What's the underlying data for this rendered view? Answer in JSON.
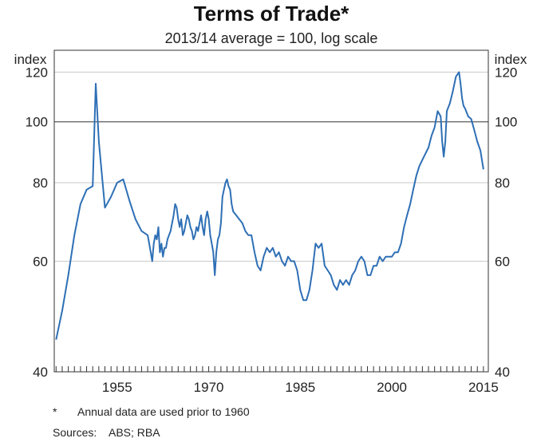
{
  "chart_data": {
    "type": "line",
    "title": "Terms of Trade*",
    "subtitle": "2013/14 average = 100, log scale",
    "ylabel_left": "index",
    "ylabel_right": "index",
    "y_scale": "log",
    "ylim": [
      40,
      130
    ],
    "xlim": [
      1944.7,
      2015.8
    ],
    "y_ticks": [
      40,
      60,
      80,
      100,
      120
    ],
    "x_ticks": [
      1955,
      1970,
      1985,
      2000,
      2015
    ],
    "reference_line": 100,
    "grid": true,
    "color": "#2e6fb5",
    "series": [
      {
        "x": [
          1945,
          1946,
          1947,
          1948,
          1949,
          1950,
          1951,
          1951.5,
          1952,
          1953,
          1954,
          1955,
          1956,
          1957,
          1958,
          1959,
          1960.0,
          1960.25,
          1960.5,
          1960.75,
          1961.0,
          1961.25,
          1961.5,
          1961.75,
          1962.0,
          1962.25,
          1962.5,
          1962.75,
          1963.0,
          1963.25,
          1963.5,
          1963.75,
          1964.0,
          1964.25,
          1964.5,
          1964.75,
          1965.0,
          1965.25,
          1965.5,
          1965.75,
          1966.0,
          1966.25,
          1966.5,
          1966.75,
          1967.0,
          1967.25,
          1967.5,
          1967.75,
          1968.0,
          1968.25,
          1968.5,
          1968.75,
          1969.0,
          1969.25,
          1969.5,
          1969.75,
          1970.0,
          1970.25,
          1970.5,
          1970.75,
          1971.0,
          1971.25,
          1971.5,
          1971.75,
          1972.0,
          1972.25,
          1972.5,
          1972.75,
          1973.0,
          1973.25,
          1973.5,
          1973.75,
          1974.0,
          1974.5,
          1975.0,
          1975.5,
          1976.0,
          1976.5,
          1977.0,
          1977.5,
          1978.0,
          1978.5,
          1979.0,
          1979.5,
          1980.0,
          1980.5,
          1981.0,
          1981.5,
          1982.0,
          1982.5,
          1983.0,
          1983.5,
          1984.0,
          1984.5,
          1985.0,
          1985.5,
          1986.0,
          1986.5,
          1987.0,
          1987.5,
          1988.0,
          1988.5,
          1989.0,
          1989.5,
          1990.0,
          1990.5,
          1991.0,
          1991.5,
          1992.0,
          1992.5,
          1993.0,
          1993.5,
          1994.0,
          1994.5,
          1995.0,
          1995.5,
          1996.0,
          1996.5,
          1997.0,
          1997.5,
          1998.0,
          1998.5,
          1999.0,
          1999.5,
          2000.0,
          2000.5,
          2001.0,
          2001.5,
          2002.0,
          2002.5,
          2003.0,
          2003.5,
          2004.0,
          2004.5,
          2005.0,
          2005.5,
          2006.0,
          2006.5,
          2007.0,
          2007.5,
          2008.0,
          2008.25,
          2008.5,
          2008.75,
          2009.0,
          2009.5,
          2010.0,
          2010.5,
          2011.0,
          2011.25,
          2011.5,
          2011.75,
          2012.0,
          2012.5,
          2013.0,
          2013.5,
          2014.0,
          2014.5,
          2015.0
        ],
        "y": [
          45,
          50,
          57,
          66,
          74,
          78,
          79,
          115,
          93,
          73,
          76,
          80,
          81,
          75,
          70,
          67,
          66,
          64,
          62,
          60,
          64,
          66,
          65,
          68,
          62,
          64,
          61,
          63,
          63,
          65,
          66,
          67,
          69,
          71,
          74,
          73,
          70,
          68,
          70,
          66,
          67,
          69,
          71,
          70,
          68,
          67,
          65,
          66,
          68,
          67,
          69,
          71,
          68,
          66,
          70,
          72,
          70,
          66,
          64,
          62,
          57,
          62,
          65,
          66,
          69,
          76,
          78,
          80,
          81,
          79,
          78,
          74,
          72,
          71,
          70,
          69,
          67,
          66,
          66,
          62,
          59,
          58,
          61,
          63,
          62,
          63,
          61,
          62,
          60,
          59,
          61,
          60,
          60,
          58,
          54,
          52,
          52,
          54,
          58,
          64,
          63,
          64,
          59,
          58,
          57,
          55,
          54,
          56,
          55,
          56,
          55,
          57,
          58,
          60,
          61,
          60,
          57,
          57,
          59,
          59,
          61,
          60,
          61,
          61,
          61,
          62,
          62,
          64,
          68,
          71,
          74,
          78,
          82,
          85,
          87,
          89,
          91,
          95,
          98,
          104,
          102,
          93,
          88,
          93,
          104,
          107,
          112,
          118,
          120,
          115,
          109,
          106,
          105,
          102,
          101,
          97,
          93,
          90,
          84
        ]
      }
    ],
    "footnotes": [
      "*",
      "Annual data are used prior to 1960",
      "Sources:",
      "ABS; RBA"
    ]
  }
}
